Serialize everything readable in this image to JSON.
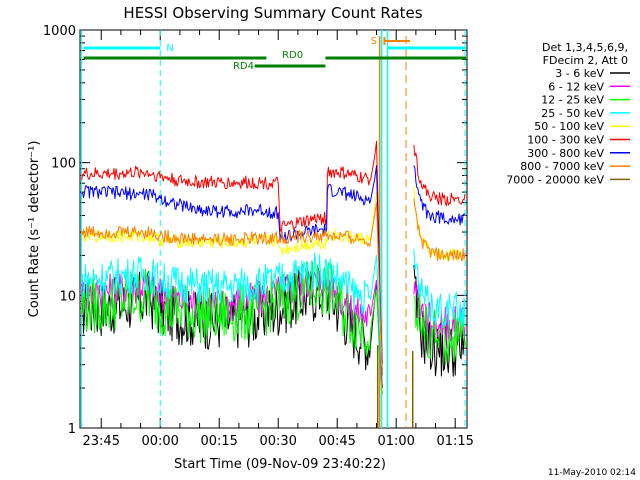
{
  "chart_data": {
    "type": "line",
    "title": "HESSI Observing Summary Count Rates",
    "xlabel": "Start Time (09-Nov-09 23:40:22)",
    "ylabel": "Count Rate (s⁻¹ detector⁻¹)",
    "yscale": "log",
    "ylim": [
      1,
      1000
    ],
    "y_ticks": [
      {
        "value": 1,
        "label": "1"
      },
      {
        "value": 10,
        "label": "10"
      },
      {
        "value": 100,
        "label": "100"
      },
      {
        "value": 1000,
        "label": "1000"
      }
    ],
    "x_ticks": [
      {
        "min": 5,
        "label": "23:45"
      },
      {
        "min": 20,
        "label": "00:00"
      },
      {
        "min": 35,
        "label": "00:15"
      },
      {
        "min": 50,
        "label": "00:30"
      },
      {
        "min": 65,
        "label": "00:45"
      },
      {
        "min": 80,
        "label": "01:00"
      },
      {
        "min": 95,
        "label": "01:15"
      }
    ],
    "xlim_minutes": [
      -0.4,
      98
    ],
    "legend_header": [
      "Det 1,3,4,5,6,9,",
      "FDecim 2, Att 0"
    ],
    "legend_placement": "right",
    "grid": false,
    "series": [
      {
        "name": "3 - 6 keV",
        "color": "#000000",
        "points": [
          [
            0,
            8
          ],
          [
            5,
            8
          ],
          [
            10,
            8.4
          ],
          [
            15,
            9.3
          ],
          [
            17,
            9.5
          ],
          [
            20,
            7.8
          ],
          [
            25,
            7
          ],
          [
            30,
            6.5
          ],
          [
            35,
            6.3
          ],
          [
            40,
            6.5
          ],
          [
            45,
            7
          ],
          [
            50,
            8
          ],
          [
            55,
            9.5
          ],
          [
            60,
            10.5
          ],
          [
            63,
            10
          ],
          [
            66,
            7.5
          ],
          [
            69,
            5.5
          ],
          [
            72,
            4.6
          ],
          [
            73.5,
            4.3
          ],
          [
            74.5,
            9
          ],
          [
            75,
            12
          ],
          [
            76,
            3
          ],
          [
            76.5,
            2
          ]
        ]
      },
      {
        "name": "6 - 12 keV",
        "color": "#ff00ff",
        "points": [
          [
            0,
            10.5
          ],
          [
            5,
            10.5
          ],
          [
            10,
            11
          ],
          [
            15,
            12
          ],
          [
            17,
            12
          ],
          [
            20,
            10
          ],
          [
            25,
            9.2
          ],
          [
            30,
            8.7
          ],
          [
            35,
            8.5
          ],
          [
            40,
            8.8
          ],
          [
            45,
            9.5
          ],
          [
            50,
            10.5
          ],
          [
            55,
            11.8
          ],
          [
            60,
            12.7
          ],
          [
            63,
            12.3
          ],
          [
            66,
            9.5
          ],
          [
            69,
            7.8
          ],
          [
            72,
            7
          ],
          [
            73.5,
            7
          ],
          [
            74.5,
            11
          ],
          [
            75,
            13
          ],
          [
            76,
            3
          ],
          [
            76.5,
            2
          ]
        ]
      },
      {
        "name": "12 - 25 keV",
        "color": "#00ff00",
        "points": [
          [
            0,
            8.3
          ],
          [
            5,
            8.3
          ],
          [
            10,
            9
          ],
          [
            15,
            10
          ],
          [
            17,
            10
          ],
          [
            20,
            8.2
          ],
          [
            25,
            7.6
          ],
          [
            30,
            7.2
          ],
          [
            35,
            7
          ],
          [
            40,
            7.2
          ],
          [
            45,
            7.8
          ],
          [
            50,
            9
          ],
          [
            55,
            10.5
          ],
          [
            60,
            11.5
          ],
          [
            63,
            11
          ],
          [
            66,
            8.2
          ],
          [
            69,
            6.4
          ],
          [
            72,
            5.6
          ],
          [
            73.5,
            5.5
          ],
          [
            74.5,
            9
          ],
          [
            75,
            11
          ],
          [
            76,
            2.5
          ],
          [
            76.5,
            1.8
          ]
        ]
      },
      {
        "name": "25 - 50 keV",
        "color": "#00ffff",
        "points": [
          [
            0,
            13
          ],
          [
            5,
            13.5
          ],
          [
            10,
            14
          ],
          [
            15,
            14.5
          ],
          [
            17,
            14.5
          ],
          [
            20,
            13
          ],
          [
            25,
            12.3
          ],
          [
            30,
            11.8
          ],
          [
            35,
            11.6
          ],
          [
            40,
            11.8
          ],
          [
            45,
            12.3
          ],
          [
            50,
            13
          ],
          [
            55,
            14.5
          ],
          [
            60,
            15.5
          ],
          [
            63,
            15
          ],
          [
            66,
            12.8
          ],
          [
            69,
            10.5
          ],
          [
            72,
            9.5
          ],
          [
            73.5,
            9.3
          ],
          [
            74.5,
            16
          ],
          [
            75,
            20
          ],
          [
            76,
            4
          ],
          [
            76.5,
            2.5
          ]
        ]
      },
      {
        "name": "50 - 100 keV",
        "color": "#ffff00",
        "points": [
          [
            0,
            28
          ],
          [
            5,
            28
          ],
          [
            10,
            28
          ],
          [
            15,
            28
          ],
          [
            17,
            28
          ],
          [
            20,
            26
          ],
          [
            25,
            25.5
          ],
          [
            30,
            25
          ],
          [
            35,
            25
          ],
          [
            40,
            25.2
          ],
          [
            45,
            25.5
          ],
          [
            50,
            26
          ],
          [
            50.5,
            22
          ],
          [
            55,
            23.5
          ],
          [
            60,
            25
          ],
          [
            62.3,
            25
          ],
          [
            62.5,
            29
          ],
          [
            66,
            28
          ],
          [
            69,
            27
          ],
          [
            72,
            26.5
          ],
          [
            73.5,
            26
          ],
          [
            74.5,
            45
          ],
          [
            75,
            60
          ],
          [
            76,
            5
          ],
          [
            76.5,
            3
          ]
        ]
      },
      {
        "name": "100 - 300 keV",
        "color": "#ff0000",
        "points": [
          [
            0,
            82
          ],
          [
            5,
            82
          ],
          [
            10,
            83
          ],
          [
            15,
            85
          ],
          [
            17,
            84
          ],
          [
            20,
            79
          ],
          [
            25,
            73
          ],
          [
            30,
            71
          ],
          [
            35,
            70.5
          ],
          [
            40,
            70.5
          ],
          [
            45,
            71
          ],
          [
            50,
            70
          ],
          [
            50.5,
            32
          ],
          [
            55,
            35
          ],
          [
            60,
            38
          ],
          [
            62.3,
            38
          ],
          [
            62.5,
            85
          ],
          [
            66,
            84
          ],
          [
            69,
            80
          ],
          [
            72,
            76
          ],
          [
            73.5,
            74
          ],
          [
            74.5,
            110
          ],
          [
            75,
            145
          ],
          [
            76,
            8
          ],
          [
            76.5,
            3
          ]
        ]
      },
      {
        "name": "300 - 800 keV",
        "color": "#0000ff",
        "points": [
          [
            0,
            61
          ],
          [
            5,
            60
          ],
          [
            10,
            59
          ],
          [
            15,
            58
          ],
          [
            17,
            58
          ],
          [
            20,
            54
          ],
          [
            25,
            48
          ],
          [
            30,
            44
          ],
          [
            35,
            43
          ],
          [
            40,
            43
          ],
          [
            45,
            44
          ],
          [
            50,
            42
          ],
          [
            50.5,
            27
          ],
          [
            55,
            29
          ],
          [
            60,
            31
          ],
          [
            62.3,
            31
          ],
          [
            62.5,
            62
          ],
          [
            66,
            60
          ],
          [
            69,
            56
          ],
          [
            72,
            53
          ],
          [
            73.5,
            52
          ],
          [
            74.5,
            75
          ],
          [
            75,
            95
          ],
          [
            76,
            6
          ],
          [
            76.5,
            2.5
          ]
        ]
      },
      {
        "name": "800 - 7000 keV",
        "color": "#ff8000",
        "points": [
          [
            0,
            30
          ],
          [
            5,
            30
          ],
          [
            10,
            30
          ],
          [
            15,
            30
          ],
          [
            17,
            30
          ],
          [
            20,
            28
          ],
          [
            25,
            27
          ],
          [
            30,
            26.5
          ],
          [
            35,
            26.5
          ],
          [
            40,
            26.5
          ],
          [
            45,
            27
          ],
          [
            50,
            27
          ],
          [
            55,
            27.5
          ],
          [
            60,
            28
          ],
          [
            62.3,
            28
          ],
          [
            62.5,
            28
          ],
          [
            66,
            27.5
          ],
          [
            69,
            27
          ],
          [
            72,
            26
          ],
          [
            73.5,
            26
          ],
          [
            74.5,
            40
          ],
          [
            75,
            50
          ],
          [
            76,
            6
          ],
          [
            76.5,
            2.5
          ]
        ]
      },
      {
        "name": "7000 - 20000 keV",
        "color": "#806000",
        "points": []
      }
    ]
  },
  "flags": [
    {
      "label": "N",
      "color": "#00ffff"
    },
    {
      "label": "RD0",
      "color": "#008000"
    },
    {
      "label": "RD4",
      "color": "#008000"
    },
    {
      "label": "S",
      "color": "#ff8000"
    }
  ],
  "footer_date": "11-May-2010 02:14"
}
